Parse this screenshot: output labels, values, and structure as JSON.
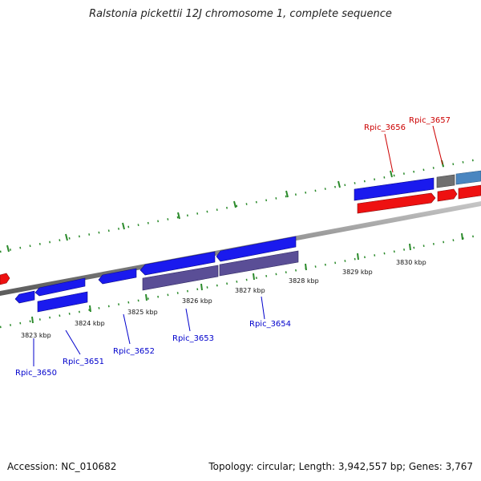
{
  "title": "Ralstonia pickettii 12J chromosome 1, complete sequence",
  "accession": "Accession: NC_010682",
  "summary": "Topology: circular; Length: 3,942,557 bp; Genes: 3,767",
  "colors": {
    "background": "#ffffff",
    "backbone": "#8a8a8a",
    "tick": "#228b22",
    "forward_gene": "#1a1aee",
    "reverse_gene": "#ee1111",
    "pseudo_gene": "#5a4e96",
    "gray_gene": "#707070",
    "steelblue_gene": "#4a86c0",
    "label_forward": "#0000cc",
    "label_reverse": "#cc0000"
  },
  "tick_labels": [
    "3823 kbp",
    "3824 kbp",
    "3825 kbp",
    "3826 kbp",
    "3827 kbp",
    "3828 kbp",
    "3829 kbp",
    "3830 kbp"
  ],
  "gene_labels": [
    {
      "text": "Rpic_3650",
      "strand": "forward"
    },
    {
      "text": "Rpic_3651",
      "strand": "forward"
    },
    {
      "text": "Rpic_3652",
      "strand": "forward"
    },
    {
      "text": "Rpic_3653",
      "strand": "forward"
    },
    {
      "text": "Rpic_3654",
      "strand": "forward"
    },
    {
      "text": "Rpic_3656",
      "strand": "reverse"
    },
    {
      "text": "Rpic_3657",
      "strand": "reverse"
    }
  ]
}
